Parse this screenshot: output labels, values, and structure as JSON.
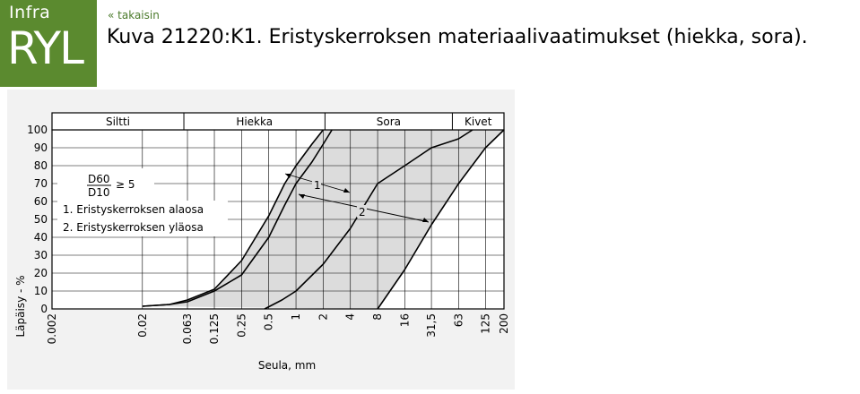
{
  "header": {
    "logo_line1": "Infra",
    "logo_line2": "RYL",
    "back_link": "« takaisin",
    "title": "Kuva 21220:K1. Eristyskerroksen materiaalivaatimukset (hiekka, sora)."
  },
  "chart_data": {
    "type": "line",
    "x_scale": "log",
    "x_ticks": [
      "0.002",
      "0.02",
      "0.063",
      "0.125",
      "0.25",
      "0.5",
      "1",
      "2",
      "4",
      "8",
      "16",
      "31,5",
      "63",
      "125",
      "200"
    ],
    "y_ticks": [
      "0",
      "10",
      "20",
      "30",
      "40",
      "50",
      "60",
      "70",
      "80",
      "90",
      "100"
    ],
    "xlabel": "Seula, mm",
    "ylabel": "Läpäisy - %",
    "ylim": [
      0,
      100
    ],
    "xlim": [
      0.002,
      200
    ],
    "grid": true,
    "soil_classes": [
      {
        "label": "Siltti",
        "from": 0.002,
        "to": 0.063
      },
      {
        "label": "Hiekka",
        "from": 0.063,
        "to": 2
      },
      {
        "label": "Sora",
        "from": 2,
        "to": 63
      },
      {
        "label": "Kivet",
        "from": 63,
        "to": 200
      }
    ],
    "series": [
      {
        "points": [
          [
            0.02,
            1.5
          ],
          [
            0.04,
            2.5
          ],
          [
            0.063,
            5
          ],
          [
            0.125,
            11
          ],
          [
            0.25,
            27
          ],
          [
            0.5,
            52
          ],
          [
            0.75,
            70
          ],
          [
            1,
            80
          ],
          [
            1.5,
            92
          ],
          [
            2,
            100
          ]
        ]
      },
      {
        "points": [
          [
            0.02,
            1.5
          ],
          [
            0.04,
            2.5
          ],
          [
            0.063,
            4
          ],
          [
            0.125,
            10
          ],
          [
            0.25,
            19
          ],
          [
            0.5,
            40
          ],
          [
            0.75,
            58
          ],
          [
            1,
            70
          ],
          [
            1.5,
            82
          ],
          [
            2,
            92
          ],
          [
            2.5,
            100
          ]
        ]
      },
      {
        "points": [
          [
            0.45,
            0
          ],
          [
            0.7,
            5
          ],
          [
            1,
            10
          ],
          [
            2,
            25
          ],
          [
            4,
            45
          ],
          [
            8,
            70
          ],
          [
            16,
            80
          ],
          [
            31.5,
            90
          ],
          [
            63,
            95
          ],
          [
            90,
            100
          ]
        ]
      },
      {
        "points": [
          [
            8,
            0
          ],
          [
            16,
            22
          ],
          [
            31.5,
            47
          ],
          [
            63,
            70
          ],
          [
            125,
            90
          ],
          [
            200,
            100
          ]
        ]
      }
    ],
    "shaded_band": "between left lower curve and right curve",
    "legend": {
      "formula_numerator": "D60",
      "formula_denominator": "D10",
      "formula_relation": "≥ 5",
      "items": [
        "1. Eristyskerroksen alaosa",
        "2. Eristyskerroksen yläosa"
      ]
    },
    "annotations": [
      "1",
      "2"
    ]
  },
  "colors": {
    "logo_bg": "#5b8a2f",
    "link": "#4a7a2a",
    "chart_panel": "#f2f2f2",
    "band_fill": "#dcdcdc",
    "line": "#000000"
  }
}
